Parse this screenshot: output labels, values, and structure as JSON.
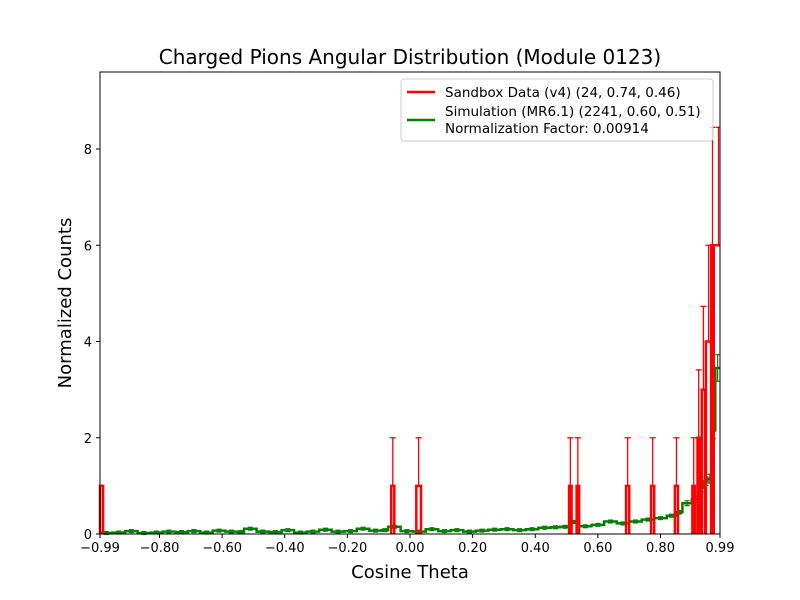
{
  "chart_data": {
    "type": "line",
    "title": "Charged Pions Angular Distribution (Module 0123)",
    "xlabel": "Cosine Theta",
    "ylabel": "Normalized Counts",
    "xlim": [
      -0.99,
      0.99
    ],
    "ylim": [
      0,
      9.6
    ],
    "x_ticks": [
      {
        "value": -0.99,
        "label": "−0.99"
      },
      {
        "value": -0.8,
        "label": "−0.80"
      },
      {
        "value": -0.6,
        "label": "−0.60"
      },
      {
        "value": -0.4,
        "label": "−0.40"
      },
      {
        "value": -0.2,
        "label": "−0.20"
      },
      {
        "value": 0.0,
        "label": "0.00"
      },
      {
        "value": 0.2,
        "label": "0.20"
      },
      {
        "value": 0.4,
        "label": "0.40"
      },
      {
        "value": 0.6,
        "label": "0.60"
      },
      {
        "value": 0.8,
        "label": "0.80"
      },
      {
        "value": 0.99,
        "label": "0.99"
      }
    ],
    "y_ticks": [
      {
        "value": 0,
        "label": "0"
      },
      {
        "value": 2,
        "label": "2"
      },
      {
        "value": 4,
        "label": "4"
      },
      {
        "value": 6,
        "label": "6"
      },
      {
        "value": 8,
        "label": "8"
      }
    ],
    "grid": false,
    "legend_position": "top-right",
    "series": [
      {
        "name": "Sandbox Data (v4) (24, 0.74, 0.46)",
        "color": "#ff0000",
        "style": "step",
        "bins": [
          {
            "lo": -0.99,
            "hi": -0.98,
            "y": 1
          },
          {
            "lo": -0.06,
            "hi": -0.05,
            "y": 1,
            "err": 1
          },
          {
            "lo": 0.02,
            "hi": 0.035,
            "y": 1,
            "err": 1
          },
          {
            "lo": 0.508,
            "hi": 0.516,
            "y": 1,
            "err": 1
          },
          {
            "lo": 0.532,
            "hi": 0.54,
            "y": 1,
            "err": 1
          },
          {
            "lo": 0.69,
            "hi": 0.7,
            "y": 1,
            "err": 1
          },
          {
            "lo": 0.77,
            "hi": 0.78,
            "y": 1,
            "err": 1
          },
          {
            "lo": 0.846,
            "hi": 0.856,
            "y": 1,
            "err": 1
          },
          {
            "lo": 0.902,
            "hi": 0.91,
            "y": 1,
            "err": 1
          },
          {
            "lo": 0.918,
            "hi": 0.926,
            "y": 2,
            "err": 1.41
          },
          {
            "lo": 0.932,
            "hi": 0.942,
            "y": 3,
            "err": 1.73
          },
          {
            "lo": 0.945,
            "hi": 0.962,
            "y": 4,
            "err": 2
          },
          {
            "lo": 0.962,
            "hi": 0.97,
            "y": 6,
            "err": 2.45
          }
        ],
        "tail_peak": {
          "x": 0.97,
          "y": 6,
          "err": 2.45
        }
      },
      {
        "name": "Simulation (MR6.1) (2241, 0.60, 0.51)",
        "extra_legend_line": "Normalization Factor: 0.00914",
        "color": "#008000",
        "style": "step",
        "points": [
          [
            -0.99,
            0.02
          ],
          [
            -0.95,
            0.03
          ],
          [
            -0.91,
            0.06
          ],
          [
            -0.87,
            0.02
          ],
          [
            -0.83,
            0.03
          ],
          [
            -0.79,
            0.05
          ],
          [
            -0.75,
            0.04
          ],
          [
            -0.71,
            0.06
          ],
          [
            -0.67,
            0.03
          ],
          [
            -0.63,
            0.07
          ],
          [
            -0.59,
            0.05
          ],
          [
            -0.55,
            0.04
          ],
          [
            -0.53,
            0.11
          ],
          [
            -0.49,
            0.05
          ],
          [
            -0.45,
            0.04
          ],
          [
            -0.41,
            0.08
          ],
          [
            -0.37,
            0.03
          ],
          [
            -0.33,
            0.05
          ],
          [
            -0.29,
            0.09
          ],
          [
            -0.25,
            0.05
          ],
          [
            -0.21,
            0.06
          ],
          [
            -0.17,
            0.11
          ],
          [
            -0.13,
            0.07
          ],
          [
            -0.09,
            0.08
          ],
          [
            -0.07,
            0.15
          ],
          [
            -0.03,
            0.06
          ],
          [
            0.01,
            0.05
          ],
          [
            0.05,
            0.1
          ],
          [
            0.09,
            0.06
          ],
          [
            0.13,
            0.08
          ],
          [
            0.17,
            0.05
          ],
          [
            0.21,
            0.07
          ],
          [
            0.25,
            0.09
          ],
          [
            0.29,
            0.1
          ],
          [
            0.33,
            0.08
          ],
          [
            0.37,
            0.1
          ],
          [
            0.41,
            0.13
          ],
          [
            0.45,
            0.14
          ],
          [
            0.48,
            0.15
          ],
          [
            0.51,
            0.25
          ],
          [
            0.54,
            0.16
          ],
          [
            0.58,
            0.19
          ],
          [
            0.62,
            0.26
          ],
          [
            0.66,
            0.22
          ],
          [
            0.7,
            0.26
          ],
          [
            0.74,
            0.3
          ],
          [
            0.78,
            0.33
          ],
          [
            0.82,
            0.38
          ],
          [
            0.85,
            0.45
          ],
          [
            0.87,
            0.64
          ],
          [
            0.9,
            0.72
          ],
          [
            0.92,
            0.96
          ],
          [
            0.94,
            1.1
          ],
          [
            0.95,
            1.15
          ],
          [
            0.965,
            2.15
          ],
          [
            0.975,
            3.45
          ]
        ]
      }
    ]
  }
}
